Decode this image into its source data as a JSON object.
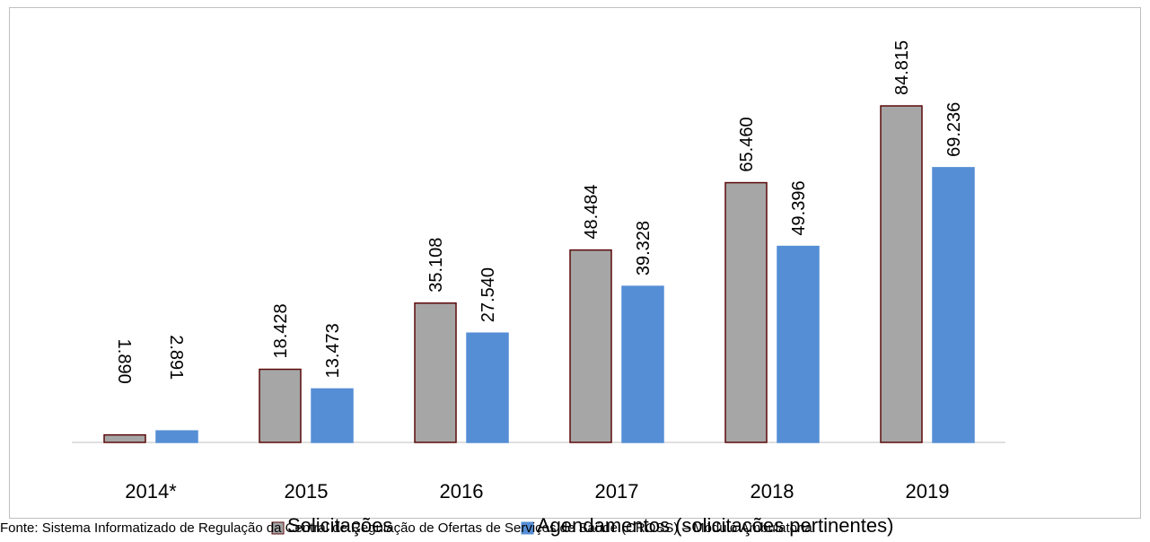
{
  "chart_data": {
    "type": "bar",
    "categories": [
      "2014*",
      "2015",
      "2016",
      "2017",
      "2018",
      "2019"
    ],
    "series": [
      {
        "name": "Solicitações",
        "values": [
          1890,
          18428,
          35108,
          48484,
          65460,
          84815
        ],
        "labels": [
          "1.890",
          "18.428",
          "35.108",
          "48.484",
          "65.460",
          "84.815"
        ],
        "color": "#a6a6a6",
        "stroke": "#5c0a0a"
      },
      {
        "name": "Agendamentos (solicitações pertinentes)",
        "values": [
          2891,
          13473,
          27540,
          39328,
          49396,
          69236
        ],
        "labels": [
          "2.891",
          "13.473",
          "27.540",
          "39.328",
          "49.396",
          "69.236"
        ],
        "color": "#558ed5",
        "stroke": "#558ed5"
      }
    ],
    "ylim": [
      0,
      100000
    ],
    "grid": false,
    "legend_position": "bottom"
  },
  "source": "Fonte: Sistema Informatizado de Regulação da Central de Regulação de Ofertas de Serviços de Saúde (CROSS) – Módulo Ambulatorial"
}
